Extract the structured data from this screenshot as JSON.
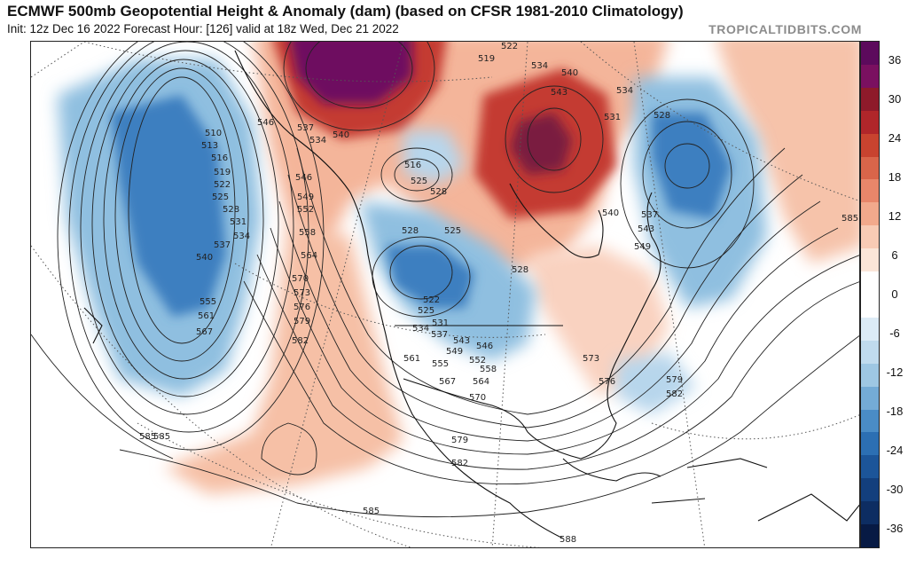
{
  "header": {
    "title": "ECMWF 500mb Geopotential Height & Anomaly (dam) (based on CFSR 1981-2010 Climatology)",
    "subtitle": "Init: 12z Dec 16 2022   Forecast Hour: [126]   valid at 18z Wed, Dec 21 2022",
    "brand": "TROPICALTIDBITS.COM"
  },
  "colorbar": {
    "labels": [
      "36",
      "30",
      "24",
      "18",
      "12",
      "6",
      "0",
      "-6",
      "-12",
      "-18",
      "-24",
      "-30",
      "-36"
    ],
    "colors": [
      "#5c0a5c",
      "#7a1060",
      "#8e1a2a",
      "#b0262a",
      "#c8432f",
      "#d9654a",
      "#e8866a",
      "#f2a98c",
      "#f8cbb5",
      "#fbe6d8",
      "#ffffff",
      "#ffffff",
      "#dcebf6",
      "#c0dbee",
      "#9ec7e3",
      "#74abd6",
      "#4a8cc6",
      "#2c6fb3",
      "#1c5599",
      "#133f7d",
      "#0d2d62",
      "#071a44"
    ]
  },
  "map": {
    "contour_labels": [
      "510",
      "513",
      "516",
      "519",
      "522",
      "525",
      "528",
      "531",
      "534",
      "537",
      "540",
      "546",
      "555",
      "561",
      "567",
      "537",
      "534",
      "540",
      "546",
      "549",
      "552",
      "558",
      "564",
      "570",
      "573",
      "576",
      "579",
      "582",
      "585",
      "516",
      "525",
      "528",
      "528",
      "525",
      "522",
      "525",
      "531",
      "534",
      "537",
      "543",
      "546",
      "549",
      "552",
      "555",
      "558",
      "561",
      "564",
      "567",
      "570",
      "573",
      "576",
      "579",
      "582",
      "519",
      "522",
      "534",
      "540",
      "543",
      "534",
      "531",
      "528",
      "540",
      "537",
      "543",
      "549",
      "585",
      "585",
      "588",
      "579",
      "582",
      "585",
      "528"
    ]
  },
  "chart_data": {
    "type": "heatmap",
    "title": "ECMWF 500mb Geopotential Height & Anomaly (dam) (based on CFSR 1981-2010 Climatology)",
    "colorbar_ticks": [
      36,
      30,
      24,
      18,
      12,
      6,
      0,
      -6,
      -12,
      -18,
      -24,
      -30,
      -36
    ],
    "colorbar_range": [
      -39,
      39
    ],
    "height_contour_values_dam": [
      510,
      513,
      516,
      519,
      522,
      525,
      528,
      531,
      534,
      537,
      540,
      543,
      546,
      549,
      552,
      555,
      558,
      561,
      564,
      567,
      570,
      573,
      576,
      579,
      582,
      585,
      588
    ],
    "anomaly_features": [
      {
        "region": "northern Canada / Arctic",
        "sign": "positive",
        "peak_dam": 36
      },
      {
        "region": "Hudson Bay",
        "sign": "positive",
        "peak_dam": 36
      },
      {
        "region": "Gulf of Alaska / North Pacific",
        "sign": "negative",
        "peak_dam": -24
      },
      {
        "region": "North-central United States",
        "sign": "negative",
        "peak_dam": -24
      },
      {
        "region": "North Atlantic",
        "sign": "negative",
        "peak_dam": -24
      },
      {
        "region": "Western North America / East Pacific",
        "sign": "positive",
        "peak_dam": 12
      }
    ]
  }
}
